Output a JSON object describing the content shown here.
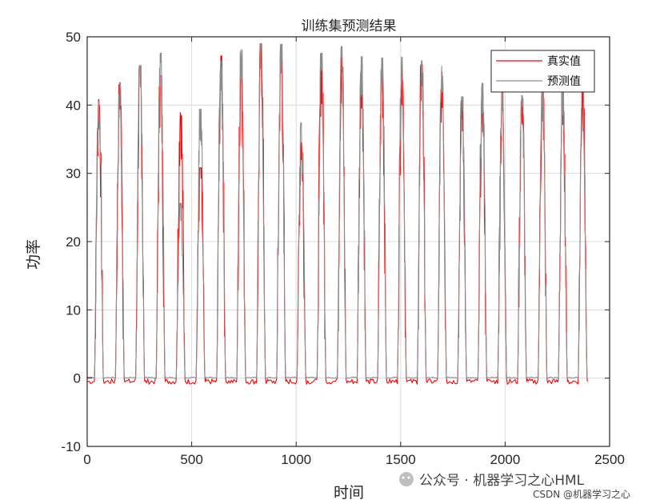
{
  "chart_data": {
    "type": "line",
    "title": "训练集预测结果",
    "xlabel": "时间",
    "ylabel": "功率",
    "xlim": [
      0,
      2500
    ],
    "ylim": [
      -10,
      50
    ],
    "xticks": [
      0,
      500,
      1000,
      1500,
      2000,
      2500
    ],
    "yticks": [
      -10,
      0,
      10,
      20,
      30,
      40,
      50
    ],
    "grid": true,
    "legend_position": "top-right",
    "series": [
      {
        "name": "真实值",
        "color": "#ff0000",
        "day_starts": [
          35,
          135,
          232,
          330,
          426,
          521,
          620,
          716,
          811,
          907,
          1004,
          1100,
          1197,
          1292,
          1390,
          1485,
          1580,
          1677,
          1773,
          1870,
          1965,
          2060,
          2158,
          2255,
          2350
        ],
        "day_peaks": [
          40.8,
          43.0,
          45.6,
          44.3,
          38.9,
          30.8,
          47.2,
          46.2,
          48.9,
          48.5,
          34.5,
          46.3,
          47.3,
          46.0,
          45.0,
          46.6,
          45.9,
          44.9,
          40.6,
          41.6,
          42.1,
          41.2,
          42.9,
          42.7,
          43.6
        ],
        "night_level": -0.5
      },
      {
        "name": "预测值",
        "color": "#8c8c8c",
        "day_starts": [
          35,
          135,
          232,
          330,
          426,
          521,
          620,
          716,
          811,
          907,
          1004,
          1100,
          1197,
          1292,
          1390,
          1485,
          1580,
          1677,
          1773,
          1870,
          1965,
          2060,
          2158,
          2255,
          2350
        ],
        "day_peaks": [
          40.5,
          43.3,
          45.8,
          47.6,
          25.6,
          39.4,
          46.4,
          48.1,
          49.0,
          48.9,
          37.4,
          47.6,
          48.6,
          47.1,
          46.9,
          47.0,
          46.5,
          45.7,
          41.2,
          43.2,
          42.5,
          41.4,
          42.3,
          42.5,
          45.0
        ],
        "night_level": 0
      }
    ]
  },
  "watermark": {
    "main": "公众号 · 机器学习之心HML",
    "sub": "CSDN @机器学习之心"
  }
}
